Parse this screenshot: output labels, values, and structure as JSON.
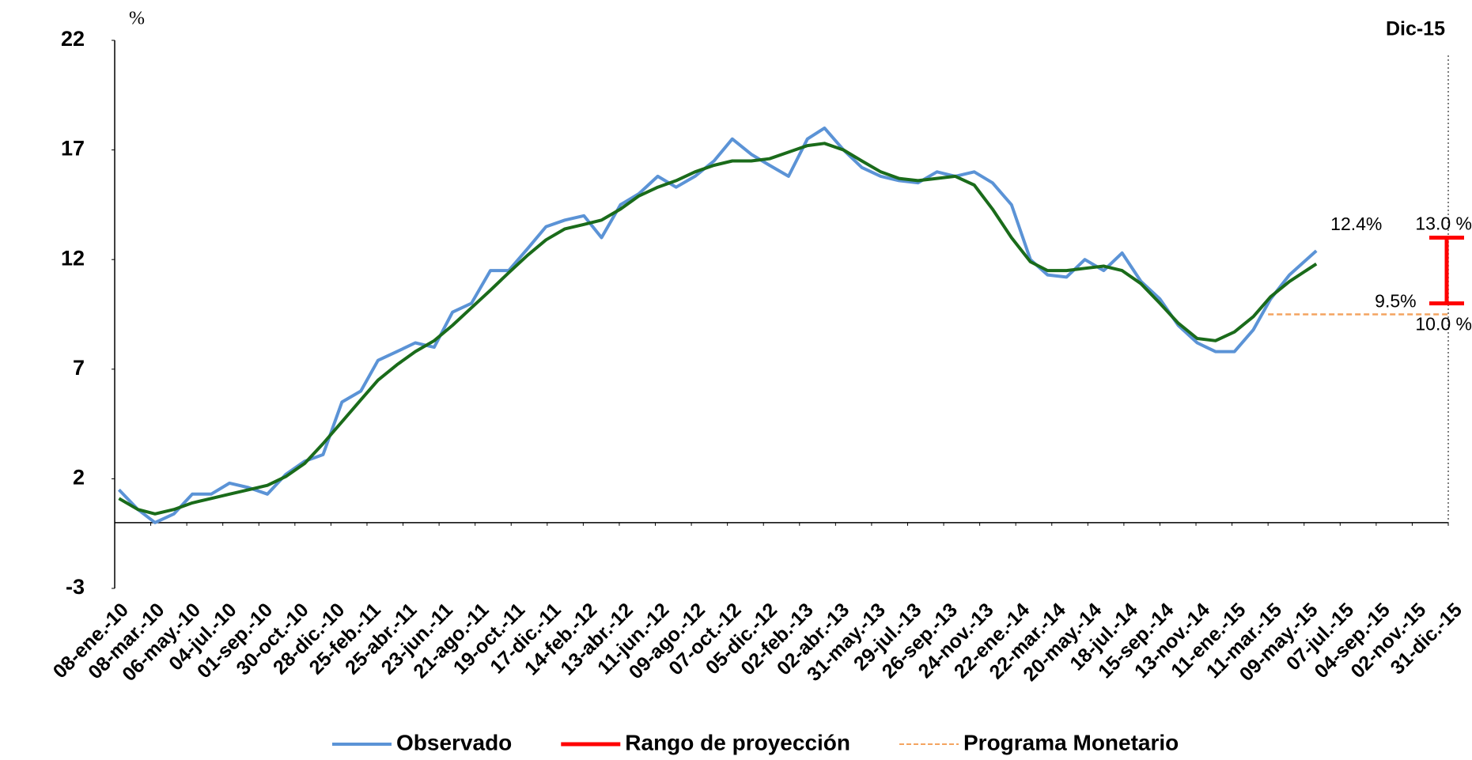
{
  "chart_data": {
    "type": "line",
    "y_label": "%",
    "xlim": [
      "2010-01-08",
      "2015-12-31"
    ],
    "ylim": [
      -3,
      22
    ],
    "yticks": [
      -3,
      2,
      7,
      12,
      17,
      22
    ],
    "xticks": [
      {
        "value": "2010-01-08",
        "label": "08-ene.-10"
      },
      {
        "value": "2010-03-08",
        "label": "08-mar.-10"
      },
      {
        "value": "2010-05-06",
        "label": "06-may.-10"
      },
      {
        "value": "2010-07-04",
        "label": "04-jul.-10"
      },
      {
        "value": "2010-09-01",
        "label": "01-sep.-10"
      },
      {
        "value": "2010-10-30",
        "label": "30-oct.-10"
      },
      {
        "value": "2010-12-28",
        "label": "28-dic.-10"
      },
      {
        "value": "2011-02-25",
        "label": "25-feb.-11"
      },
      {
        "value": "2011-04-25",
        "label": "25-abr.-11"
      },
      {
        "value": "2011-06-23",
        "label": "23-jun.-11"
      },
      {
        "value": "2011-08-21",
        "label": "21-ago.-11"
      },
      {
        "value": "2011-10-19",
        "label": "19-oct.-11"
      },
      {
        "value": "2011-12-17",
        "label": "17-dic.-11"
      },
      {
        "value": "2012-02-14",
        "label": "14-feb.-12"
      },
      {
        "value": "2012-04-13",
        "label": "13-abr.-12"
      },
      {
        "value": "2012-06-11",
        "label": "11-jun.-12"
      },
      {
        "value": "2012-08-09",
        "label": "09-ago.-12"
      },
      {
        "value": "2012-10-07",
        "label": "07-oct.-12"
      },
      {
        "value": "2012-12-05",
        "label": "05-dic.-12"
      },
      {
        "value": "2013-02-02",
        "label": "02-feb.-13"
      },
      {
        "value": "2013-04-02",
        "label": "02-abr.-13"
      },
      {
        "value": "2013-05-31",
        "label": "31-may.-13"
      },
      {
        "value": "2013-07-29",
        "label": "29-jul.-13"
      },
      {
        "value": "2013-09-26",
        "label": "26-sep.-13"
      },
      {
        "value": "2013-11-24",
        "label": "24-nov.-13"
      },
      {
        "value": "2014-01-22",
        "label": "22-ene.-14"
      },
      {
        "value": "2014-03-22",
        "label": "22-mar.-14"
      },
      {
        "value": "2014-05-20",
        "label": "20-may.-14"
      },
      {
        "value": "2014-07-18",
        "label": "18-jul.-14"
      },
      {
        "value": "2014-09-15",
        "label": "15-sep.-14"
      },
      {
        "value": "2014-11-13",
        "label": "13-nov.-14"
      },
      {
        "value": "2015-01-11",
        "label": "11-ene.-15"
      },
      {
        "value": "2015-03-11",
        "label": "11-mar.-15"
      },
      {
        "value": "2015-05-09",
        "label": "09-may.-15"
      },
      {
        "value": "2015-07-07",
        "label": "07-jul.-15"
      },
      {
        "value": "2015-09-04",
        "label": "04-sep.-15"
      },
      {
        "value": "2015-11-02",
        "label": "02-nov.-15"
      },
      {
        "value": "2015-12-31",
        "label": "31-dic.-15"
      }
    ],
    "x": [
      "2010-01-15",
      "2010-02-15",
      "2010-03-15",
      "2010-04-15",
      "2010-05-15",
      "2010-06-15",
      "2010-07-15",
      "2010-08-15",
      "2010-09-15",
      "2010-10-15",
      "2010-11-15",
      "2010-12-15",
      "2011-01-15",
      "2011-02-15",
      "2011-03-15",
      "2011-04-15",
      "2011-05-15",
      "2011-06-15",
      "2011-07-15",
      "2011-08-15",
      "2011-09-15",
      "2011-10-15",
      "2011-11-15",
      "2011-12-15",
      "2012-01-15",
      "2012-02-15",
      "2012-03-15",
      "2012-04-15",
      "2012-05-15",
      "2012-06-15",
      "2012-07-15",
      "2012-08-15",
      "2012-09-15",
      "2012-10-15",
      "2012-11-15",
      "2012-12-15",
      "2013-01-15",
      "2013-02-15",
      "2013-03-15",
      "2013-04-15",
      "2013-05-15",
      "2013-06-15",
      "2013-07-15",
      "2013-08-15",
      "2013-09-15",
      "2013-10-15",
      "2013-11-15",
      "2013-12-15",
      "2014-01-15",
      "2014-02-15",
      "2014-03-15",
      "2014-04-15",
      "2014-05-15",
      "2014-06-15",
      "2014-07-15",
      "2014-08-15",
      "2014-09-15",
      "2014-10-15",
      "2014-11-15",
      "2014-12-15",
      "2015-01-15",
      "2015-02-15",
      "2015-03-15",
      "2015-04-15",
      "2015-05-29"
    ],
    "series": [
      {
        "name": "Observado",
        "color": "#5b93d6",
        "width": 4,
        "values": [
          1.5,
          0.6,
          0.0,
          0.4,
          1.3,
          1.3,
          1.8,
          1.6,
          1.3,
          2.2,
          2.8,
          3.1,
          5.5,
          6.0,
          7.4,
          7.8,
          8.2,
          8.0,
          9.6,
          10.0,
          11.5,
          11.5,
          12.5,
          13.5,
          13.8,
          14.0,
          13.0,
          14.5,
          15.0,
          15.8,
          15.3,
          15.8,
          16.5,
          17.5,
          16.8,
          16.3,
          15.8,
          17.5,
          18.0,
          17.0,
          16.2,
          15.8,
          15.6,
          15.5,
          16.0,
          15.8,
          16.0,
          15.5,
          14.5,
          12.0,
          11.3,
          11.2,
          12.0,
          11.5,
          12.3,
          11.0,
          10.2,
          9.0,
          8.2,
          7.8,
          7.8,
          8.8,
          10.2,
          11.3,
          12.4
        ],
        "last_value_label": "12.4%"
      },
      {
        "color": "#1a6b1a",
        "width": 4,
        "values": [
          1.1,
          0.6,
          0.4,
          0.6,
          0.9,
          1.1,
          1.3,
          1.5,
          1.7,
          2.1,
          2.7,
          3.6,
          4.6,
          5.6,
          6.5,
          7.2,
          7.8,
          8.3,
          9.0,
          9.8,
          10.6,
          11.4,
          12.2,
          12.9,
          13.4,
          13.6,
          13.8,
          14.3,
          14.9,
          15.3,
          15.6,
          16.0,
          16.3,
          16.5,
          16.5,
          16.6,
          16.9,
          17.2,
          17.3,
          17.0,
          16.5,
          16.0,
          15.7,
          15.6,
          15.7,
          15.8,
          15.4,
          14.3,
          13.0,
          11.9,
          11.5,
          11.5,
          11.6,
          11.7,
          11.5,
          10.9,
          10.0,
          9.1,
          8.4,
          8.3,
          8.7,
          9.4,
          10.3,
          11.0,
          11.8
        ]
      }
    ],
    "range": {
      "name": "Rango de proyección",
      "color": "#ff0000",
      "x": "2015-12-31",
      "low": 10.0,
      "high": 13.0,
      "low_label": "10.0 %",
      "high_label": "13.0 %"
    },
    "program": {
      "name": "Programa Monetario",
      "color": "#f4a460",
      "x": [
        "2015-03-11",
        "2015-12-31"
      ],
      "value": 9.5,
      "value_label": "9.5%"
    },
    "marker": {
      "x": "2015-12-31",
      "label": "Dic-15"
    }
  }
}
